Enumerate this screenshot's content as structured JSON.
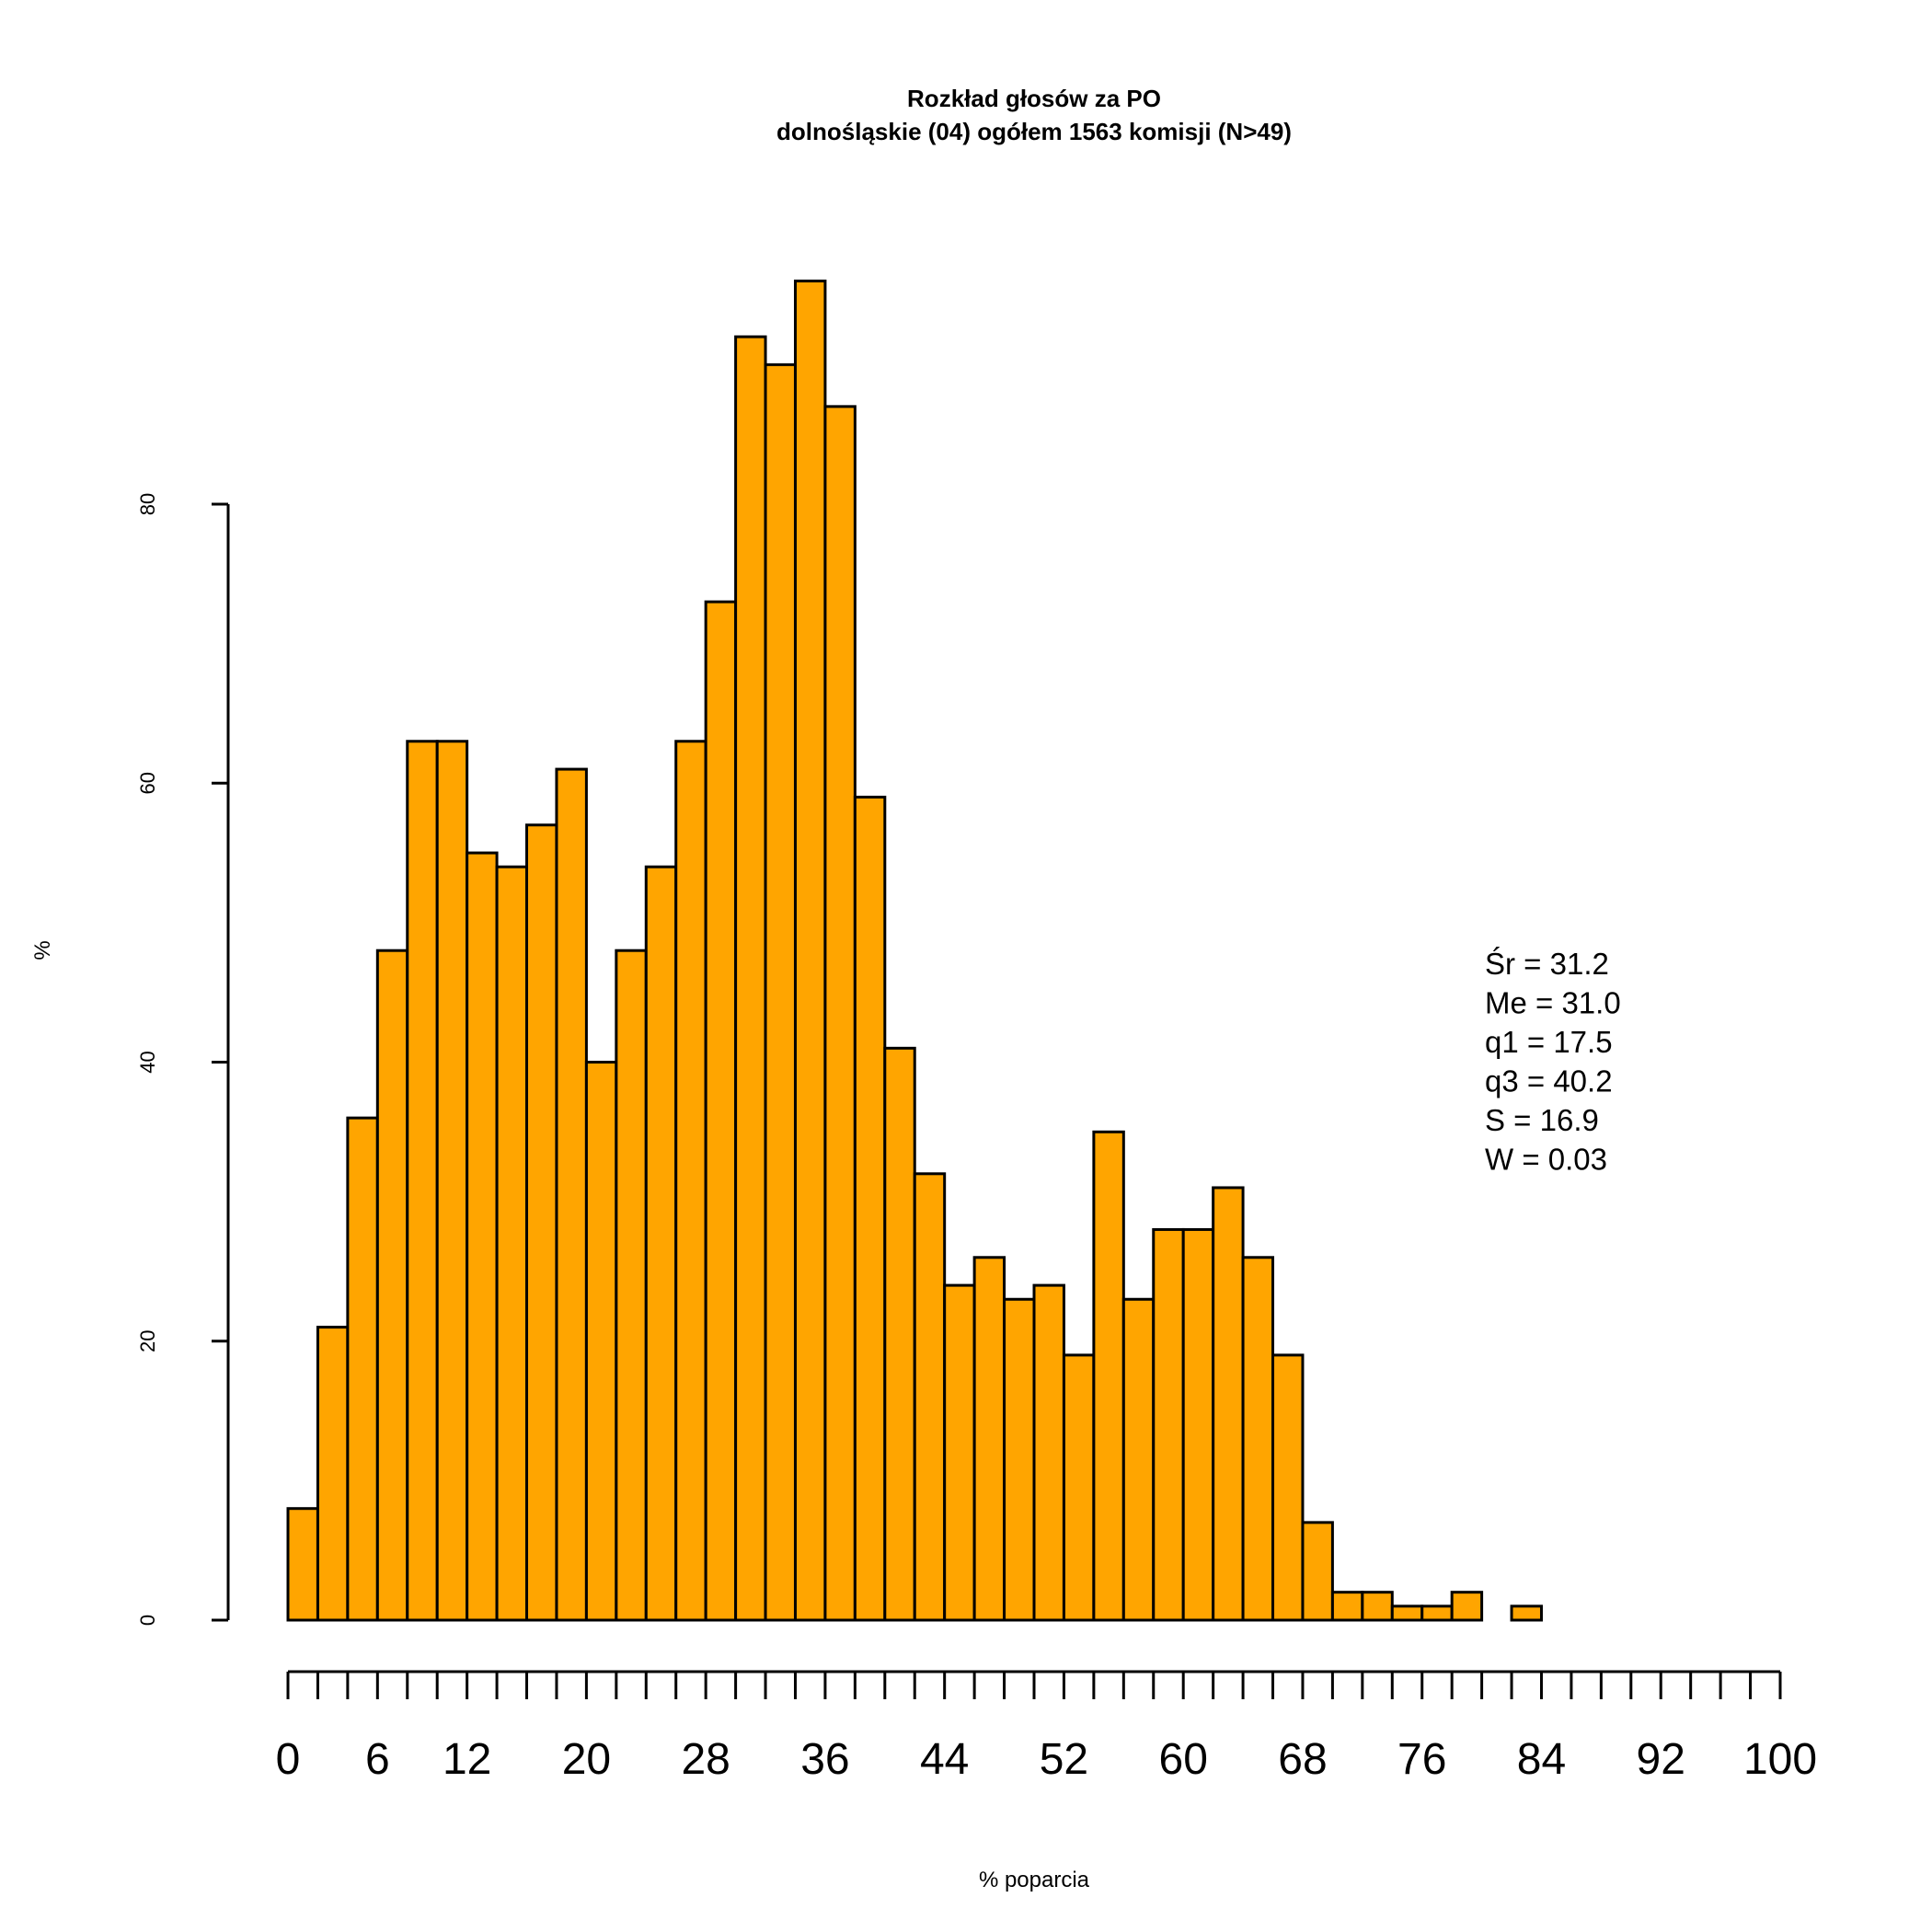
{
  "chart_data": {
    "type": "bar",
    "title": "Rozkład głosów za PO",
    "subtitle": "dolnośląskie (04) ogółem 1563 komisji (N>49)",
    "xlabel": "% poparcia",
    "ylabel": "%",
    "bin_width": 2,
    "xlim": [
      0,
      100
    ],
    "ylim": [
      0,
      80
    ],
    "bin_starts": [
      0,
      2,
      4,
      6,
      8,
      10,
      12,
      14,
      16,
      18,
      20,
      22,
      24,
      26,
      28,
      30,
      32,
      34,
      36,
      38,
      40,
      42,
      44,
      46,
      48,
      50,
      52,
      54,
      56,
      58,
      60,
      62,
      64,
      66,
      68,
      70,
      72,
      74,
      76,
      78,
      80,
      82,
      84,
      86,
      88,
      90,
      92,
      94,
      96,
      98
    ],
    "values": [
      8,
      21,
      36,
      48,
      63,
      63,
      55,
      54,
      57,
      61,
      40,
      48,
      54,
      63,
      73,
      92,
      90,
      96,
      87,
      59,
      41,
      32,
      24,
      26,
      23,
      24,
      19,
      35,
      23,
      28,
      28,
      31,
      26,
      19,
      7,
      2,
      2,
      1,
      1,
      2,
      0,
      1,
      0,
      0,
      0,
      0,
      0,
      0,
      0,
      0
    ],
    "y_ticks": [
      "0",
      "20",
      "40",
      "60",
      "80"
    ],
    "x_tick_labels": [
      "0",
      "6",
      "12",
      "20",
      "28",
      "36",
      "44",
      "52",
      "60",
      "68",
      "76",
      "84",
      "92",
      "100"
    ],
    "x_tick_label_values": [
      0,
      6,
      12,
      20,
      28,
      36,
      44,
      52,
      60,
      68,
      76,
      84,
      92,
      100
    ],
    "x_minor_tick_step": 2,
    "stats": [
      "Śr = 31.2",
      "Me = 31.0",
      "q1 = 17.5",
      "q3 = 40.2",
      "S = 16.9",
      "W = 0.03"
    ],
    "colors": {
      "bar_fill": "#FFA500",
      "bar_stroke": "#000000"
    }
  }
}
